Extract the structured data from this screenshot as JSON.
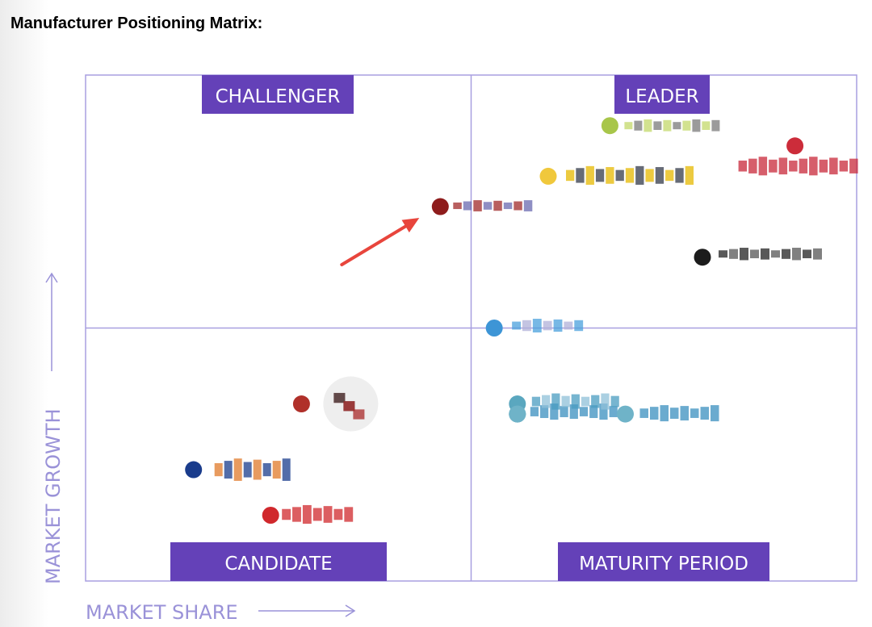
{
  "page": {
    "title": "Manufacturer Positioning Matrix:"
  },
  "chart_data": {
    "type": "scatter",
    "title": "",
    "xlabel": "MARKET SHARE",
    "ylabel": "MARKET GROWTH",
    "xlim": [
      0,
      1
    ],
    "ylim": [
      0,
      1
    ],
    "grid": false,
    "quadrant_split": {
      "x": 0.5,
      "y": 0.5
    },
    "quadrants": [
      {
        "name": "CHALLENGER",
        "position": "top-left"
      },
      {
        "name": "LEADER",
        "position": "top-right"
      },
      {
        "name": "CANDIDATE",
        "position": "bottom-left"
      },
      {
        "name": "MATURITY PERIOD",
        "position": "bottom-right"
      }
    ],
    "colors": {
      "frame": "#a89fe0",
      "quadrant_label_bg": "#6441b8",
      "axis_text": "#9a92d8",
      "arrow": "#e8453c"
    },
    "points": [
      {
        "x": 0.68,
        "y": 0.9,
        "color": "#a8c64a",
        "logo_colors": [
          "#c3d86a",
          "#7a7a7a"
        ]
      },
      {
        "x": 0.92,
        "y": 0.86,
        "color": "#cc2c3a",
        "logo_colors": [
          "#c8283a"
        ]
      },
      {
        "x": 0.6,
        "y": 0.8,
        "color": "#f0c83c",
        "logo_colors": [
          "#e6b800",
          "#333a4a"
        ]
      },
      {
        "x": 0.46,
        "y": 0.74,
        "color": "#8e1c1c",
        "logo_colors": [
          "#a02a2a",
          "#6a6ab0"
        ],
        "highlighted": true
      },
      {
        "x": 0.8,
        "y": 0.64,
        "color": "#1c1c1c",
        "logo_colors": [
          "#222222",
          "#555555"
        ]
      },
      {
        "x": 0.53,
        "y": 0.5,
        "color": "#3d95d6",
        "logo_colors": [
          "#4aa0dc",
          "#b0b0d8"
        ]
      },
      {
        "x": 0.56,
        "y": 0.33,
        "color": "#6fb3c8",
        "logo_colors": [
          "#3a8fbf"
        ]
      },
      {
        "x": 0.56,
        "y": 0.35,
        "color": "#5aa7bf",
        "logo_colors": [
          "#4a9cc0",
          "#8fc0d8"
        ]
      },
      {
        "x": 0.56,
        "y": 0.33,
        "color": "#6fb3c8",
        "logo_colors": [
          "#3a8fbf"
        ]
      },
      {
        "x": 0.56,
        "y": 0.33,
        "color": "#6fb3c8",
        "logo_colors": [
          "#3a8fbf"
        ]
      },
      {
        "x": 0.28,
        "y": 0.35,
        "color": "#b0302a",
        "logo_colors": [
          "#a82828",
          "#444444"
        ]
      },
      {
        "x": 0.14,
        "y": 0.22,
        "color": "#1a3c8c",
        "logo_colors": [
          "#e07a2a",
          "#1a3c8c"
        ]
      },
      {
        "x": 0.24,
        "y": 0.13,
        "color": "#d0282c",
        "logo_colors": [
          "#d0282c"
        ]
      },
      {
        "x": 0.7,
        "y": 0.33,
        "color": "#6fb3c8",
        "logo_colors": [
          "#3a8fbf"
        ]
      }
    ],
    "annotations": [
      {
        "type": "arrow",
        "points_to": "highlighted point",
        "color": "#e8453c"
      }
    ]
  }
}
